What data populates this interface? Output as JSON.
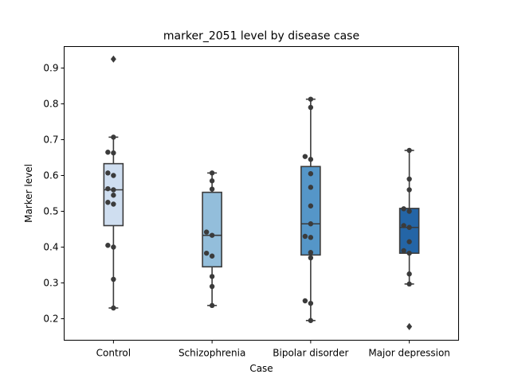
{
  "chart_data": {
    "type": "box",
    "title": "marker_2051 level by disease case",
    "xlabel": "Case",
    "ylabel": "Marker level",
    "ylim": [
      0.14,
      0.96
    ],
    "yticks": [
      0.2,
      0.3,
      0.4,
      0.5,
      0.6,
      0.7,
      0.8,
      0.9
    ],
    "ytick_labels": [
      "0.2",
      "0.3",
      "0.4",
      "0.5",
      "0.6",
      "0.7",
      "0.8",
      "0.9"
    ],
    "grid": false,
    "categories": [
      "Control",
      "Schizophrenia",
      "Bipolar disorder",
      "Major depression"
    ],
    "box_colors": [
      "#cfdef0",
      "#93bedb",
      "#5596c8",
      "#2465a6"
    ],
    "boxes": [
      {
        "category": "Control",
        "q1": 0.46,
        "median": 0.56,
        "q3": 0.633,
        "whisker_low": 0.23,
        "whisker_high": 0.707,
        "outliers": [
          0.925
        ]
      },
      {
        "category": "Schizophrenia",
        "q1": 0.345,
        "median": 0.433,
        "q3": 0.553,
        "whisker_low": 0.237,
        "whisker_high": 0.607,
        "outliers": []
      },
      {
        "category": "Bipolar disorder",
        "q1": 0.378,
        "median": 0.465,
        "q3": 0.625,
        "whisker_low": 0.195,
        "whisker_high": 0.813,
        "outliers": []
      },
      {
        "category": "Major depression",
        "q1": 0.383,
        "median": 0.455,
        "q3": 0.508,
        "whisker_low": 0.297,
        "whisker_high": 0.67,
        "outliers": [
          0.178
        ]
      }
    ],
    "points": [
      {
        "category": "Control",
        "values": [
          0.23,
          0.31,
          0.4,
          0.405,
          0.52,
          0.525,
          0.545,
          0.56,
          0.563,
          0.6,
          0.607,
          0.663,
          0.665,
          0.707
        ]
      },
      {
        "category": "Schizophrenia",
        "values": [
          0.237,
          0.29,
          0.318,
          0.375,
          0.383,
          0.433,
          0.442,
          0.562,
          0.585,
          0.607
        ]
      },
      {
        "category": "Bipolar disorder",
        "values": [
          0.195,
          0.243,
          0.25,
          0.37,
          0.385,
          0.427,
          0.43,
          0.465,
          0.515,
          0.567,
          0.605,
          0.645,
          0.653,
          0.79,
          0.813
        ]
      },
      {
        "category": "Major depression",
        "values": [
          0.297,
          0.325,
          0.383,
          0.39,
          0.415,
          0.455,
          0.46,
          0.5,
          0.507,
          0.56,
          0.59,
          0.67
        ]
      }
    ]
  }
}
